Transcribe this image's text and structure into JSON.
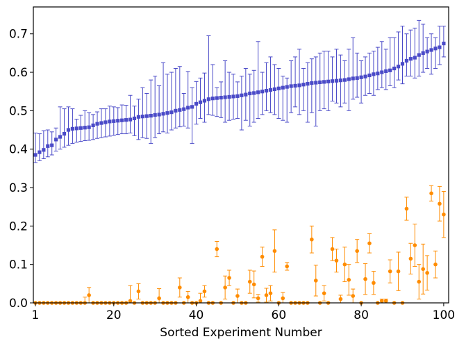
{
  "chart_data": {
    "type": "scatter",
    "xlabel": "Sorted Experiment Number",
    "ylabel": "",
    "xlim": [
      0.5,
      101.2
    ],
    "ylim": [
      0.0,
      0.77
    ],
    "xticks": [
      1,
      20,
      40,
      60,
      80,
      100
    ],
    "yticks": [
      0.0,
      0.1,
      0.2,
      0.3,
      0.4,
      0.5,
      0.6,
      0.7
    ],
    "ytick_labels": [
      "0.0",
      "0.1",
      "0.2",
      "0.3",
      "0.4",
      "0.5",
      "0.6",
      "0.7"
    ],
    "grid": false,
    "legend": "none",
    "series": [
      {
        "color": "#4a4ac8",
        "marker": "square",
        "x": [
          1,
          2,
          3,
          4,
          5,
          6,
          7,
          8,
          9,
          10,
          11,
          12,
          13,
          14,
          15,
          16,
          17,
          18,
          19,
          20,
          21,
          22,
          23,
          24,
          25,
          26,
          27,
          28,
          29,
          30,
          31,
          32,
          33,
          34,
          35,
          36,
          37,
          38,
          39,
          40,
          41,
          42,
          43,
          44,
          45,
          46,
          47,
          48,
          49,
          50,
          51,
          52,
          53,
          54,
          55,
          56,
          57,
          58,
          59,
          60,
          61,
          62,
          63,
          64,
          65,
          66,
          67,
          68,
          69,
          70,
          71,
          72,
          73,
          74,
          75,
          76,
          77,
          78,
          79,
          80,
          81,
          82,
          83,
          84,
          85,
          86,
          87,
          88,
          89,
          90,
          91,
          92,
          93,
          94,
          95,
          96,
          97,
          98,
          99,
          100
        ],
        "y": [
          0.385,
          0.392,
          0.398,
          0.408,
          0.41,
          0.425,
          0.432,
          0.44,
          0.45,
          0.453,
          0.454,
          0.455,
          0.456,
          0.457,
          0.462,
          0.466,
          0.468,
          0.47,
          0.472,
          0.473,
          0.474,
          0.475,
          0.476,
          0.477,
          0.48,
          0.484,
          0.485,
          0.486,
          0.487,
          0.489,
          0.49,
          0.492,
          0.494,
          0.496,
          0.5,
          0.502,
          0.504,
          0.508,
          0.51,
          0.518,
          0.522,
          0.526,
          0.53,
          0.532,
          0.533,
          0.534,
          0.535,
          0.536,
          0.537,
          0.538,
          0.54,
          0.542,
          0.545,
          0.546,
          0.548,
          0.55,
          0.552,
          0.554,
          0.556,
          0.558,
          0.56,
          0.562,
          0.564,
          0.565,
          0.566,
          0.568,
          0.57,
          0.572,
          0.573,
          0.574,
          0.575,
          0.576,
          0.577,
          0.578,
          0.579,
          0.58,
          0.582,
          0.584,
          0.585,
          0.587,
          0.589,
          0.592,
          0.595,
          0.597,
          0.6,
          0.603,
          0.605,
          0.61,
          0.615,
          0.622,
          0.63,
          0.635,
          0.638,
          0.645,
          0.65,
          0.654,
          0.658,
          0.662,
          0.665,
          0.675
        ],
        "yerr_low": [
          0.365,
          0.37,
          0.375,
          0.38,
          0.385,
          0.395,
          0.4,
          0.405,
          0.41,
          0.415,
          0.418,
          0.42,
          0.422,
          0.423,
          0.425,
          0.428,
          0.43,
          0.432,
          0.434,
          0.436,
          0.438,
          0.44,
          0.44,
          0.442,
          0.435,
          0.425,
          0.43,
          0.428,
          0.415,
          0.43,
          0.44,
          0.445,
          0.442,
          0.45,
          0.455,
          0.458,
          0.46,
          0.455,
          0.415,
          0.465,
          0.48,
          0.47,
          0.49,
          0.488,
          0.485,
          0.482,
          0.47,
          0.475,
          0.478,
          0.48,
          0.45,
          0.475,
          0.46,
          0.47,
          0.48,
          0.49,
          0.5,
          0.495,
          0.49,
          0.48,
          0.475,
          0.47,
          0.495,
          0.51,
          0.49,
          0.5,
          0.47,
          0.495,
          0.46,
          0.5,
          0.505,
          0.5,
          0.525,
          0.52,
          0.51,
          0.52,
          0.5,
          0.53,
          0.535,
          0.52,
          0.54,
          0.545,
          0.54,
          0.555,
          0.56,
          0.555,
          0.565,
          0.56,
          0.58,
          0.57,
          0.59,
          0.59,
          0.585,
          0.59,
          0.6,
          0.61,
          0.595,
          0.61,
          0.62,
          0.64
        ],
        "yerr_high": [
          0.442,
          0.44,
          0.448,
          0.45,
          0.445,
          0.455,
          0.51,
          0.505,
          0.51,
          0.505,
          0.478,
          0.488,
          0.5,
          0.495,
          0.49,
          0.497,
          0.505,
          0.505,
          0.512,
          0.51,
          0.508,
          0.515,
          0.514,
          0.54,
          0.512,
          0.53,
          0.56,
          0.545,
          0.58,
          0.59,
          0.565,
          0.625,
          0.595,
          0.6,
          0.61,
          0.615,
          0.545,
          0.602,
          0.56,
          0.576,
          0.585,
          0.598,
          0.695,
          0.62,
          0.56,
          0.575,
          0.63,
          0.6,
          0.595,
          0.575,
          0.59,
          0.61,
          0.595,
          0.605,
          0.68,
          0.6,
          0.625,
          0.64,
          0.62,
          0.61,
          0.59,
          0.585,
          0.63,
          0.64,
          0.66,
          0.61,
          0.625,
          0.635,
          0.64,
          0.65,
          0.655,
          0.655,
          0.64,
          0.66,
          0.645,
          0.63,
          0.66,
          0.69,
          0.65,
          0.63,
          0.64,
          0.65,
          0.655,
          0.665,
          0.68,
          0.66,
          0.69,
          0.69,
          0.705,
          0.72,
          0.7,
          0.71,
          0.715,
          0.735,
          0.725,
          0.69,
          0.7,
          0.69,
          0.72,
          0.72
        ]
      },
      {
        "color": "#ff8c00",
        "marker": "circle",
        "x": [
          1,
          2,
          3,
          4,
          5,
          6,
          7,
          8,
          9,
          10,
          11,
          12,
          13,
          14,
          15,
          16,
          17,
          18,
          19,
          20,
          21,
          22,
          23,
          24,
          25,
          26,
          27,
          28,
          29,
          30,
          31,
          32,
          33,
          34,
          35,
          36,
          37,
          38,
          39,
          40,
          41,
          42,
          43,
          44,
          45,
          46,
          47,
          48,
          49,
          50,
          51,
          52,
          53,
          54,
          55,
          56,
          57,
          58,
          59,
          60,
          61,
          62,
          63,
          64,
          65,
          66,
          67,
          68,
          69,
          70,
          71,
          72,
          73,
          74,
          75,
          76,
          77,
          78,
          79,
          80,
          81,
          82,
          83,
          84,
          85,
          86,
          87,
          88,
          89,
          90,
          91,
          92,
          93,
          94,
          95,
          96,
          97,
          98,
          99,
          100
        ],
        "y": [
          0.0,
          0.0,
          0.0,
          0.0,
          0.0,
          0.0,
          0.0,
          0.0,
          0.0,
          0.0,
          0.0,
          0.0,
          0.0,
          0.02,
          0.0,
          0.0,
          0.0,
          0.0,
          0.0,
          0.0,
          0.0,
          0.0,
          0.0,
          0.005,
          0.0,
          0.03,
          0.0,
          0.0,
          0.0,
          0.0,
          0.012,
          0.0,
          0.0,
          0.0,
          0.0,
          0.04,
          0.0,
          0.015,
          0.0,
          0.0,
          0.005,
          0.03,
          0.0,
          0.0,
          0.14,
          0.0,
          0.04,
          0.065,
          0.0,
          0.018,
          0.0,
          0.0,
          0.055,
          0.048,
          0.012,
          0.12,
          0.02,
          0.025,
          0.135,
          0.0,
          0.012,
          0.095,
          0.0,
          0.0,
          0.0,
          0.0,
          0.0,
          0.165,
          0.058,
          0.0,
          0.025,
          0.0,
          0.14,
          0.11,
          0.01,
          0.1,
          0.06,
          0.018,
          0.135,
          0.0,
          0.062,
          0.155,
          0.052,
          0.0,
          0.005,
          0.005,
          0.082,
          0.0,
          0.082,
          0.0,
          0.245,
          0.115,
          0.15,
          0.055,
          0.088,
          0.078,
          0.285,
          0.1,
          0.258,
          0.23
        ],
        "yerr": [
          0,
          0,
          0,
          0,
          0,
          0,
          0,
          0,
          0,
          0,
          0,
          0,
          0.015,
          0.02,
          0,
          0,
          0,
          0,
          0,
          0,
          0,
          0,
          0,
          0.04,
          0,
          0.02,
          0,
          0,
          0,
          0,
          0.025,
          0,
          0,
          0,
          0,
          0.025,
          0,
          0.015,
          0,
          0,
          0.02,
          0.015,
          0,
          0,
          0.02,
          0,
          0.03,
          0.02,
          0,
          0.018,
          0,
          0,
          0.03,
          0.035,
          0.01,
          0.025,
          0.018,
          0.02,
          0.055,
          0,
          0.015,
          0.01,
          0,
          0,
          0,
          0,
          0,
          0.035,
          0.04,
          0,
          0.02,
          0,
          0.03,
          0.03,
          0.01,
          0.045,
          0.04,
          0.018,
          0.03,
          0,
          0.04,
          0.025,
          0.03,
          0,
          0.005,
          0.005,
          0.03,
          0,
          0.05,
          0,
          0.03,
          0.04,
          0.055,
          0.045,
          0.065,
          0.045,
          0.02,
          0.035,
          0.045,
          0.06
        ]
      }
    ]
  }
}
